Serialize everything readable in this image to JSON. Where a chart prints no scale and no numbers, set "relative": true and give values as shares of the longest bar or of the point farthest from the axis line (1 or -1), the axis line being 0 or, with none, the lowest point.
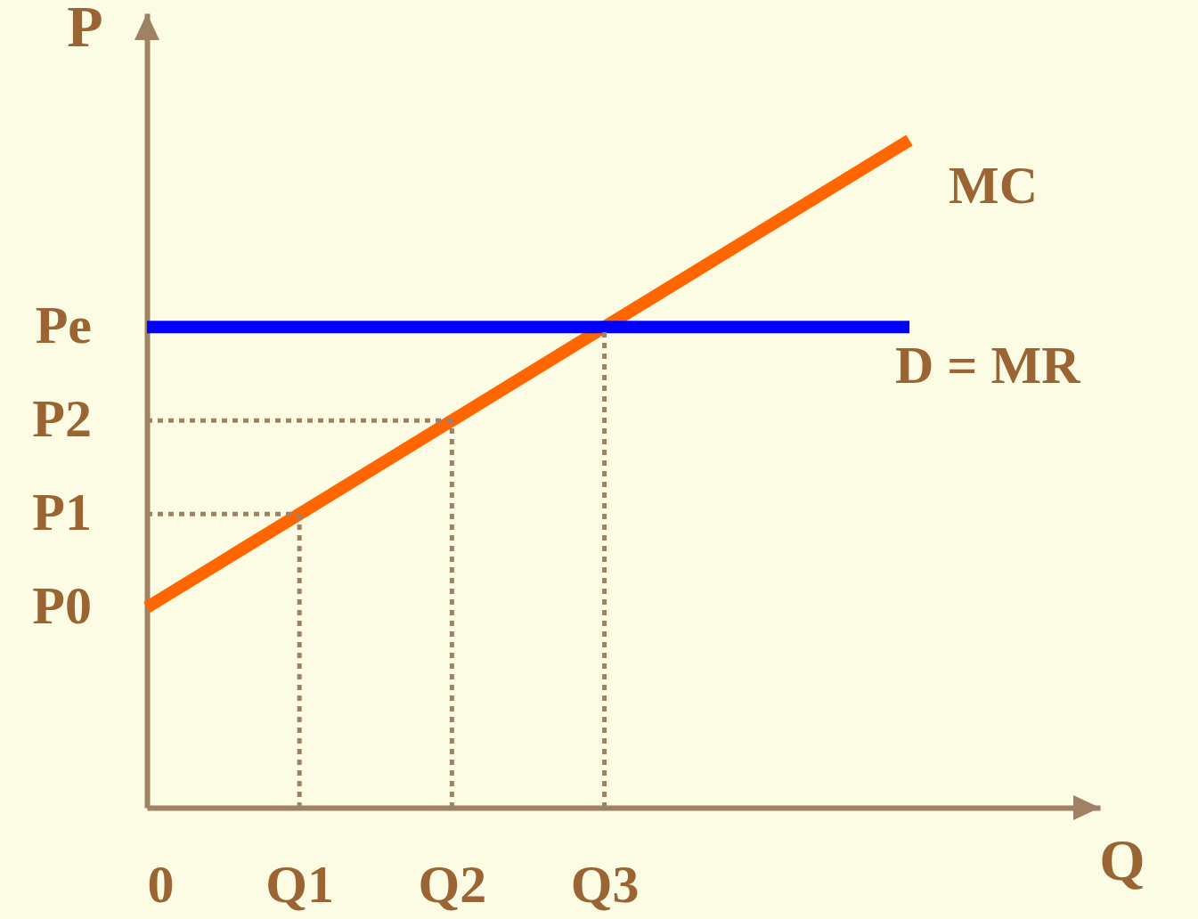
{
  "chart_data": {
    "type": "line",
    "relative": true,
    "xlabel": "Q",
    "ylabel": "P",
    "grid": false,
    "marker": "none",
    "line_style": "solid",
    "categories": [
      "0",
      "Q1",
      "Q2",
      "Q3",
      null,
      null
    ],
    "series": [
      {
        "name": "MC",
        "color": "#ff6600",
        "values": [
          0.3,
          0.44,
          0.58,
          0.72,
          0.86,
          1.0
        ]
      },
      {
        "name": "D = MR",
        "color": "#0000ff",
        "values": [
          0.72,
          0.72,
          0.72,
          0.72,
          0.72,
          0.72
        ]
      }
    ],
    "annotations": [
      {
        "text": "P0",
        "x": "0",
        "y": 0.3
      },
      {
        "text": "P1",
        "x": "0",
        "y": 0.44
      },
      {
        "text": "P2",
        "x": "0",
        "y": 0.58
      },
      {
        "text": "Pe",
        "x": "0",
        "y": 0.72
      }
    ],
    "ref_lines": [
      {
        "axis": "x",
        "value": "Q1",
        "color": "#9e8263",
        "line_style": "dotted"
      },
      {
        "axis": "x",
        "value": "Q2",
        "color": "#9e8263",
        "line_style": "dotted"
      },
      {
        "axis": "x",
        "value": "Q3",
        "color": "#9e8263",
        "line_style": "dotted"
      },
      {
        "axis": "y",
        "value": 0.44,
        "color": "#9e8263",
        "line_style": "dotted"
      },
      {
        "axis": "y",
        "value": 0.58,
        "color": "#9e8263",
        "line_style": "dotted"
      }
    ]
  }
}
